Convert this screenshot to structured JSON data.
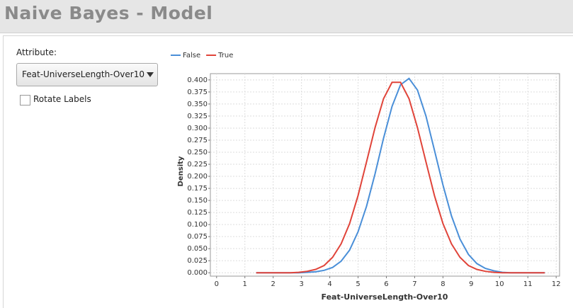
{
  "header": {
    "title": "Naive Bayes - Model"
  },
  "controls": {
    "attribute_label": "Attribute:",
    "attribute_value": "Feat-UniverseLength-Over10",
    "rotate_labels": "Rotate Labels"
  },
  "chart_data": {
    "type": "line",
    "x_label": "Feat-UniverseLength-Over10",
    "y_label": "Density",
    "x": [
      1.4,
      1.7,
      2.0,
      2.3,
      2.6,
      2.9,
      3.2,
      3.5,
      3.8,
      4.1,
      4.4,
      4.7,
      5.0,
      5.3,
      5.6,
      5.9,
      6.2,
      6.5,
      6.8,
      7.1,
      7.4,
      7.7,
      8.0,
      8.3,
      8.6,
      8.9,
      9.2,
      9.5,
      9.8,
      10.1,
      10.4,
      10.7,
      11.0,
      11.3,
      11.6
    ],
    "series": [
      {
        "name": "False",
        "color": "#4a8fd8",
        "values": [
          0,
          0,
          0,
          0,
          0,
          0,
          0.001,
          0.002,
          0.005,
          0.011,
          0.024,
          0.047,
          0.085,
          0.138,
          0.205,
          0.279,
          0.345,
          0.39,
          0.403,
          0.379,
          0.325,
          0.254,
          0.182,
          0.118,
          0.07,
          0.038,
          0.019,
          0.009,
          0.004,
          0.001,
          0,
          0,
          0,
          0,
          0
        ]
      },
      {
        "name": "True",
        "color": "#e0443a",
        "values": [
          0,
          0,
          0,
          0,
          0,
          0.001,
          0.003,
          0.007,
          0.015,
          0.032,
          0.06,
          0.102,
          0.16,
          0.23,
          0.301,
          0.361,
          0.395,
          0.395,
          0.361,
          0.301,
          0.23,
          0.16,
          0.102,
          0.06,
          0.032,
          0.015,
          0.007,
          0.003,
          0.001,
          0,
          0,
          0,
          0,
          0,
          0
        ]
      }
    ],
    "xlim": [
      -0.22,
      12.12
    ],
    "ylim": [
      -0.007,
      0.413
    ],
    "xticks": [
      0,
      1,
      2,
      3,
      4,
      5,
      6,
      7,
      8,
      9,
      10,
      11,
      12
    ],
    "yticks": [
      {
        "value": 0,
        "label": "0.000"
      },
      {
        "value": 0.025,
        "label": "0.025"
      },
      {
        "value": 0.05,
        "label": "0.050"
      },
      {
        "value": 0.075,
        "label": "0.075"
      },
      {
        "value": 0.1,
        "label": "0.100"
      },
      {
        "value": 0.125,
        "label": "0.125"
      },
      {
        "value": 0.15,
        "label": "0.150"
      },
      {
        "value": 0.175,
        "label": "0.175"
      },
      {
        "value": 0.2,
        "label": "0.200"
      },
      {
        "value": 0.225,
        "label": "0.225"
      },
      {
        "value": 0.25,
        "label": "0.250"
      },
      {
        "value": 0.275,
        "label": "0.275"
      },
      {
        "value": 0.3,
        "label": "0.300"
      },
      {
        "value": 0.325,
        "label": "0.325"
      },
      {
        "value": 0.35,
        "label": "0.350"
      },
      {
        "value": 0.375,
        "label": "0.375"
      },
      {
        "value": 0.4,
        "label": "0.400"
      }
    ],
    "grid": true,
    "legend": "top-left"
  }
}
